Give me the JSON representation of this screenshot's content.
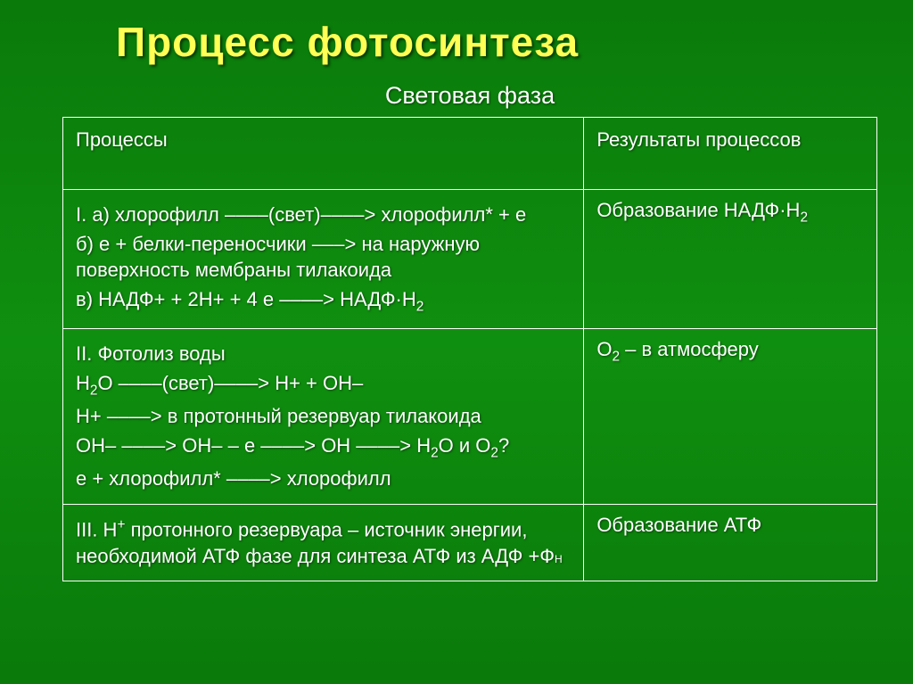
{
  "title": "Процесс фотосинтеза",
  "subtitle": "Световая фаза",
  "header": {
    "left": "Процессы",
    "right": "Результаты процессов"
  },
  "rows": [
    {
      "left": [
        "I. а) хлорофилл ––––(свет)––––> хлорофилл* + e",
        "б) e + белки-переносчики –––> на наружную поверхность мембраны тилакоида",
        "в) НАДФ+ + 2H+ + 4 e ––––> НАДФ·H₂"
      ],
      "right": "Образование НАДФ·H₂"
    },
    {
      "left": [
        "II. Фотолиз воды",
        "H₂O ––––(свет)––––> H+ + OH–",
        "H+ ––––> в протонный резервуар тилакоида",
        "OH– ––––> OH– – e ––––> OH ––––> H₂O и O₂?",
        "e + хлорофилл* ––––> хлорофилл"
      ],
      "right": "O₂ – в атмосферу"
    },
    {
      "left": [
        "III. H⁺ протонного резервуара – источник энергии, необходимой АТФ фазе для синтеза АТФ из АДФ +Фₙ"
      ],
      "right": "Образование АТФ"
    }
  ],
  "colors": {
    "title": "#ffff55",
    "text": "#ffffff",
    "border": "#ffffff",
    "bg_start": "#0a7a0a",
    "bg_mid": "#0f8f0f"
  },
  "fonts": {
    "title_size": 46,
    "subtitle_size": 27,
    "cell_size": 22
  }
}
